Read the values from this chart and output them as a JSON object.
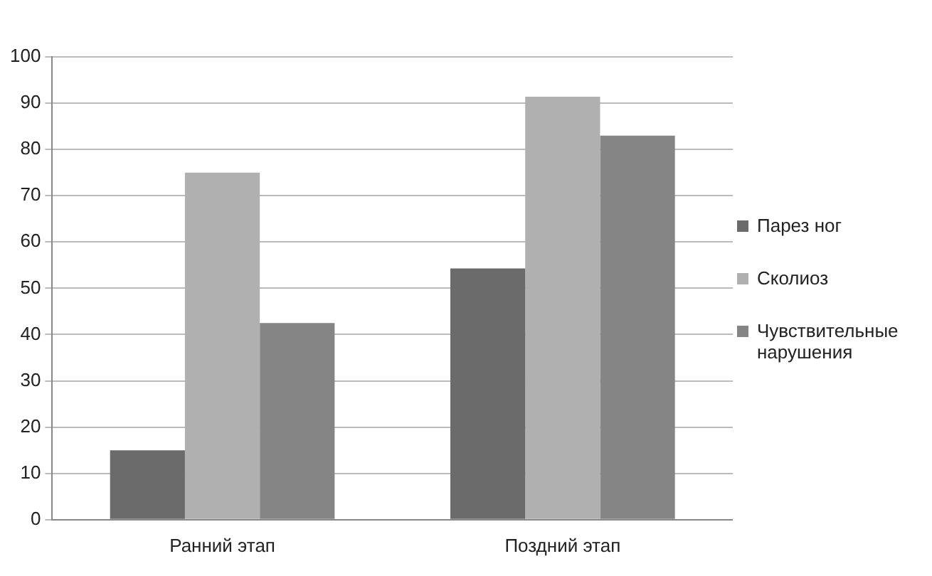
{
  "chart_data": {
    "type": "bar",
    "categories": [
      "Ранний этап",
      "Поздний этап"
    ],
    "series": [
      {
        "name": "Парез ног",
        "color": "#6b6b6b",
        "values": [
          15,
          54.3
        ]
      },
      {
        "name": "Сколиоз",
        "color": "#b0b0b0",
        "values": [
          75,
          91.4
        ]
      },
      {
        "name": "Чувствительные нарушения",
        "color": "#858585",
        "values": [
          42.5,
          83
        ]
      }
    ],
    "ylim": [
      0,
      100
    ],
    "yticks": [
      0,
      10,
      20,
      30,
      40,
      50,
      60,
      70,
      80,
      90,
      100
    ],
    "grid": "y",
    "legend": "right"
  }
}
